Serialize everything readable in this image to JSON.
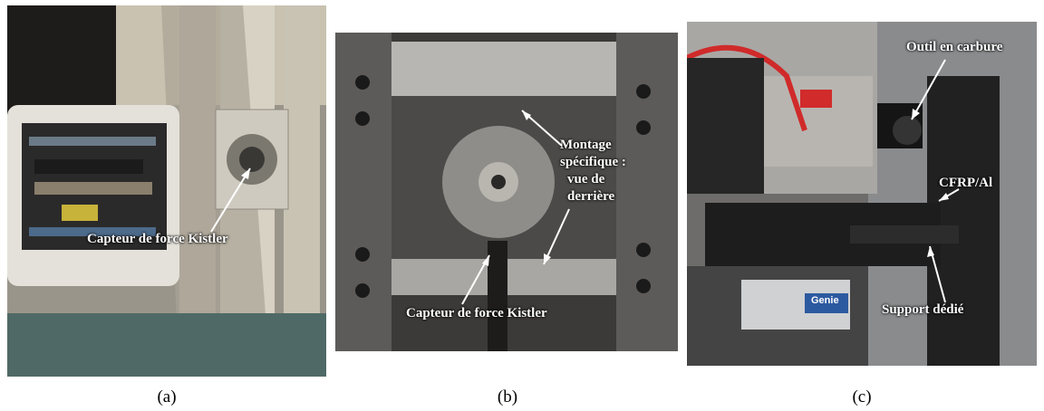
{
  "panels": [
    {
      "caption": "(a)",
      "labels": {
        "sensor": "Capteur de force Kistler"
      }
    },
    {
      "caption": "(b)",
      "labels": {
        "mount_line1": "Montage",
        "mount_line2": "spécifique :",
        "mount_line3": "vue de",
        "mount_line4": "derrière",
        "sensor": "Capteur de force Kistler"
      }
    },
    {
      "caption": "(c)",
      "labels": {
        "tool": "Outil en carbure",
        "material": "CFRP/Al",
        "support": "Support dédié",
        "camera_brand": "Genie"
      }
    }
  ]
}
